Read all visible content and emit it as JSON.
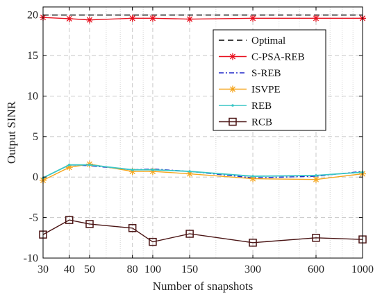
{
  "chart_data": {
    "type": "line",
    "title": "",
    "xlabel": "Number of snapshots",
    "ylabel": "Output SINR",
    "x_scale": "log",
    "x": [
      30,
      40,
      50,
      80,
      100,
      150,
      300,
      600,
      1000
    ],
    "x_tick_labels": [
      "30",
      "40",
      "50",
      "80",
      "100",
      "150",
      "300",
      "600",
      "1000"
    ],
    "xlim": [
      30,
      1000
    ],
    "ylim": [
      -10,
      21
    ],
    "y_ticks": [
      -10,
      -5,
      0,
      5,
      10,
      15,
      20
    ],
    "y_tick_labels": [
      "-10",
      "-5",
      "0",
      "5",
      "10",
      "15",
      "20"
    ],
    "grid": true,
    "legend_position": "upper-right",
    "series": [
      {
        "name": "Optimal",
        "color": "#000000",
        "dash": "8,5",
        "marker": "none",
        "values": [
          20,
          20,
          20,
          20,
          20,
          20,
          20,
          20,
          20
        ]
      },
      {
        "name": "C-PSA-REB",
        "color": "#e8101e",
        "dash": "",
        "marker": "star",
        "values": [
          19.7,
          19.55,
          19.4,
          19.6,
          19.6,
          19.5,
          19.6,
          19.6,
          19.6
        ]
      },
      {
        "name": "S-REB",
        "color": "#1f26c8",
        "dash": "7,3,2,3",
        "marker": "none",
        "values": [
          -0.1,
          1.5,
          1.4,
          0.9,
          1.0,
          0.7,
          -0.1,
          0.1,
          0.7
        ]
      },
      {
        "name": "ISVPE",
        "color": "#f5a51c",
        "dash": "",
        "marker": "star",
        "values": [
          -0.4,
          1.2,
          1.6,
          0.7,
          0.7,
          0.4,
          -0.2,
          -0.3,
          0.4
        ]
      },
      {
        "name": "REB",
        "color": "#3ac6c6",
        "dash": "",
        "marker": "dot",
        "values": [
          -0.1,
          1.5,
          1.5,
          0.9,
          0.9,
          0.7,
          0.1,
          0.2,
          0.6
        ]
      },
      {
        "name": "RCB",
        "color": "#4a1414",
        "dash": "",
        "marker": "square",
        "values": [
          -7.1,
          -5.3,
          -5.8,
          -6.3,
          -8.0,
          -7.0,
          -8.1,
          -7.5,
          -7.7
        ]
      }
    ]
  }
}
